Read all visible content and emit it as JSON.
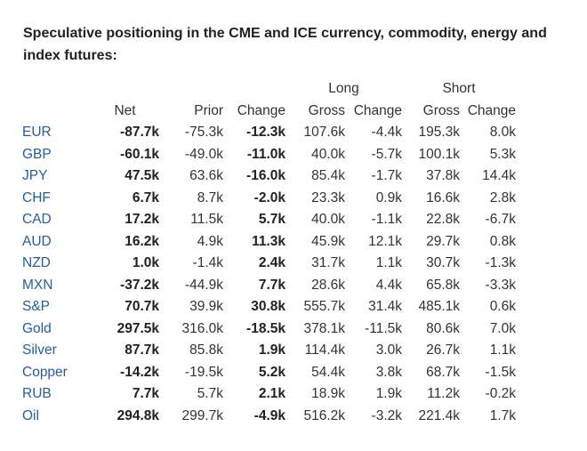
{
  "title": "Speculative positioning in the CME and ICE currency, commodity, energy and index futures:",
  "groups": {
    "long": "Long",
    "short": "Short"
  },
  "headers": [
    "Net",
    "Prior",
    "Change",
    "Gross",
    "Change",
    "Gross",
    "Change"
  ],
  "rows": [
    {
      "label": "EUR",
      "net": "-87.7k",
      "prior": "-75.3k",
      "change": "-12.3k",
      "long_gross": "107.6k",
      "long_change": "-4.4k",
      "short_gross": "195.3k",
      "short_change": "8.0k"
    },
    {
      "label": "GBP",
      "net": "-60.1k",
      "prior": "-49.0k",
      "change": "-11.0k",
      "long_gross": "40.0k",
      "long_change": "-5.7k",
      "short_gross": "100.1k",
      "short_change": "5.3k"
    },
    {
      "label": "JPY",
      "net": "47.5k",
      "prior": "63.6k",
      "change": "-16.0k",
      "long_gross": "85.4k",
      "long_change": "-1.7k",
      "short_gross": "37.8k",
      "short_change": "14.4k"
    },
    {
      "label": "CHF",
      "net": "6.7k",
      "prior": "8.7k",
      "change": "-2.0k",
      "long_gross": "23.3k",
      "long_change": "0.9k",
      "short_gross": "16.6k",
      "short_change": "2.8k"
    },
    {
      "label": "CAD",
      "net": "17.2k",
      "prior": "11.5k",
      "change": "5.7k",
      "long_gross": "40.0k",
      "long_change": "-1.1k",
      "short_gross": "22.8k",
      "short_change": "-6.7k"
    },
    {
      "label": "AUD",
      "net": "16.2k",
      "prior": "4.9k",
      "change": "11.3k",
      "long_gross": "45.9k",
      "long_change": "12.1k",
      "short_gross": "29.7k",
      "short_change": "0.8k"
    },
    {
      "label": "NZD",
      "net": "1.0k",
      "prior": "-1.4k",
      "change": "2.4k",
      "long_gross": "31.7k",
      "long_change": "1.1k",
      "short_gross": "30.7k",
      "short_change": "-1.3k"
    },
    {
      "label": "MXN",
      "net": "-37.2k",
      "prior": "-44.9k",
      "change": "7.7k",
      "long_gross": "28.6k",
      "long_change": "4.4k",
      "short_gross": "65.8k",
      "short_change": "-3.3k"
    },
    {
      "label": "S&P",
      "net": "70.7k",
      "prior": "39.9k",
      "change": "30.8k",
      "long_gross": "555.7k",
      "long_change": "31.4k",
      "short_gross": "485.1k",
      "short_change": "0.6k"
    },
    {
      "label": "Gold",
      "net": "297.5k",
      "prior": "316.0k",
      "change": "-18.5k",
      "long_gross": "378.1k",
      "long_change": "-11.5k",
      "short_gross": "80.6k",
      "short_change": "7.0k"
    },
    {
      "label": "Silver",
      "net": "87.7k",
      "prior": "85.8k",
      "change": "1.9k",
      "long_gross": "114.4k",
      "long_change": "3.0k",
      "short_gross": "26.7k",
      "short_change": "1.1k"
    },
    {
      "label": "Copper",
      "net": "-14.2k",
      "prior": "-19.5k",
      "change": "5.2k",
      "long_gross": "54.4k",
      "long_change": "3.8k",
      "short_gross": "68.7k",
      "short_change": "-1.5k"
    },
    {
      "label": "RUB",
      "net": "7.7k",
      "prior": "5.7k",
      "change": "2.1k",
      "long_gross": "18.9k",
      "long_change": "1.9k",
      "short_gross": "11.2k",
      "short_change": "-0.2k"
    },
    {
      "label": "Oil",
      "net": "294.8k",
      "prior": "299.7k",
      "change": "-4.9k",
      "long_gross": "516.2k",
      "long_change": "-3.2k",
      "short_gross": "221.4k",
      "short_change": "1.7k"
    }
  ]
}
